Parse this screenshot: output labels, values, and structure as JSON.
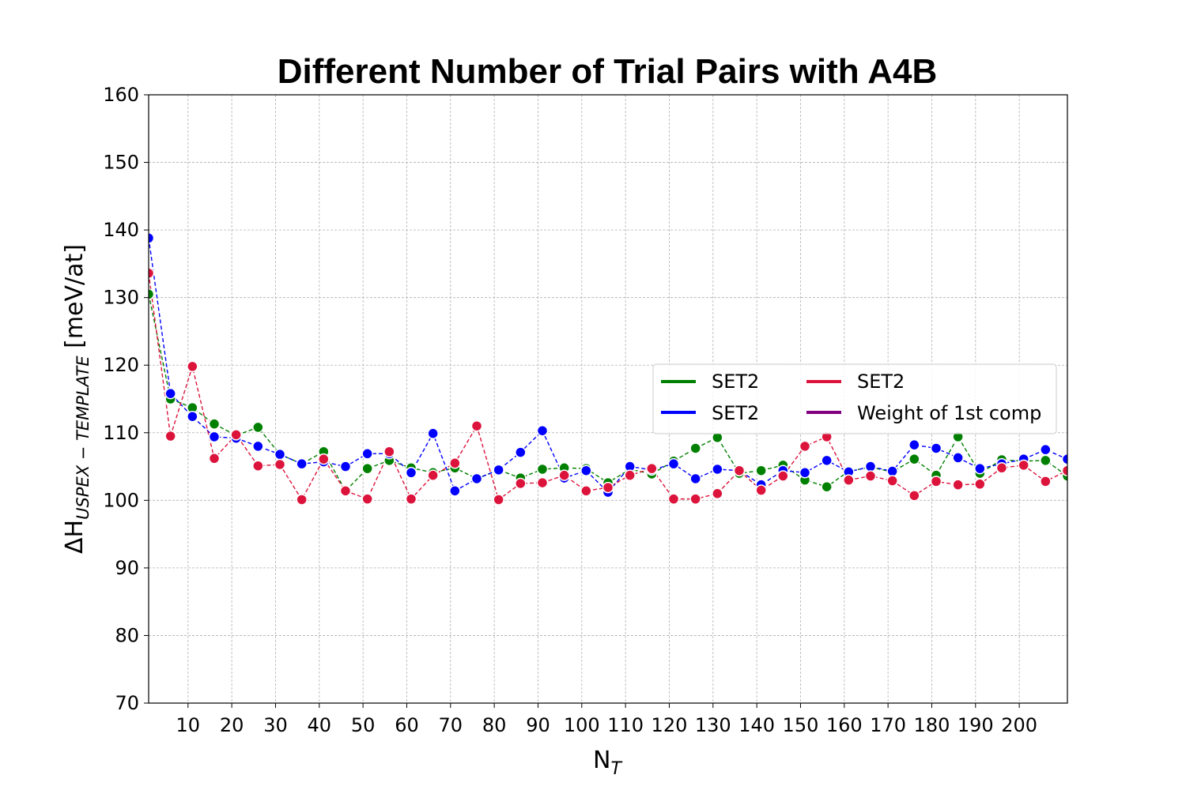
{
  "chart_data": {
    "type": "line",
    "title": "Different Number of Trial Pairs with A4B",
    "xlabel_main": "N",
    "xlabel_sub": "T",
    "ylabel_main": "ΔH",
    "ylabel_sub": "USPEX − TEMPLATE",
    "ylabel_unit": " [meV/at]",
    "xlim": [
      1,
      211
    ],
    "ylim": [
      70,
      160
    ],
    "xticks": [
      10,
      20,
      30,
      40,
      50,
      60,
      70,
      80,
      90,
      100,
      110,
      120,
      130,
      140,
      150,
      160,
      170,
      180,
      190,
      200
    ],
    "yticks": [
      70,
      80,
      90,
      100,
      110,
      120,
      130,
      140,
      150,
      160
    ],
    "grid": true,
    "legend_placement": "center-right",
    "x": [
      1,
      6,
      11,
      16,
      21,
      26,
      31,
      36,
      41,
      46,
      51,
      56,
      61,
      66,
      71,
      76,
      81,
      86,
      91,
      96,
      101,
      106,
      111,
      116,
      121,
      126,
      131,
      136,
      141,
      146,
      151,
      156,
      161,
      166,
      171,
      176,
      181,
      186,
      191,
      196,
      201,
      206,
      211
    ],
    "series": [
      {
        "name": "SET2",
        "color": "#008000",
        "values": [
          130.5,
          115.0,
          113.7,
          111.3,
          109.6,
          110.8,
          106.8,
          105.4,
          107.2,
          101.4,
          104.7,
          105.9,
          104.8,
          104.1,
          104.8,
          103.2,
          104.5,
          103.3,
          104.6,
          104.8,
          104.7,
          102.6,
          104.6,
          103.9,
          105.8,
          107.7,
          109.3,
          104.0,
          104.4,
          105.2,
          103.0,
          102.0,
          104.3,
          104.9,
          104.2,
          106.1,
          103.7,
          109.4,
          104.0,
          106.0,
          105.8,
          105.9,
          103.6
        ]
      },
      {
        "name": "SET2",
        "color": "#0000ff",
        "values": [
          138.8,
          115.8,
          112.4,
          109.4,
          109.2,
          108.0,
          106.8,
          105.4,
          105.7,
          105.0,
          106.9,
          106.9,
          104.1,
          109.9,
          101.4,
          103.2,
          104.5,
          107.1,
          110.3,
          103.3,
          104.4,
          101.2,
          105.0,
          104.5,
          105.4,
          103.2,
          104.6,
          104.4,
          102.3,
          104.4,
          104.1,
          105.9,
          104.2,
          105.0,
          104.3,
          108.2,
          107.7,
          106.3,
          104.7,
          105.4,
          106.1,
          107.5,
          106.1
        ]
      },
      {
        "name": "SET2",
        "color": "#dc143c",
        "values": [
          133.6,
          109.5,
          119.8,
          106.2,
          109.7,
          105.1,
          105.3,
          100.1,
          106.1,
          101.4,
          100.2,
          107.2,
          100.2,
          103.7,
          105.5,
          111.0,
          100.1,
          102.5,
          102.6,
          103.7,
          101.4,
          101.9,
          103.7,
          104.7,
          100.2,
          100.2,
          101.0,
          104.4,
          101.5,
          103.6,
          108.0,
          109.4,
          103.0,
          103.6,
          102.9,
          100.7,
          102.8,
          102.3,
          102.4,
          104.8,
          105.2,
          102.8,
          104.4
        ]
      }
    ],
    "legend": [
      {
        "label": "SET2",
        "color": "#008000"
      },
      {
        "label": "SET2",
        "color": "#dc143c"
      },
      {
        "label": "SET2",
        "color": "#0000ff"
      },
      {
        "label": "Weight of 1st comp",
        "color": "#800080"
      }
    ]
  }
}
